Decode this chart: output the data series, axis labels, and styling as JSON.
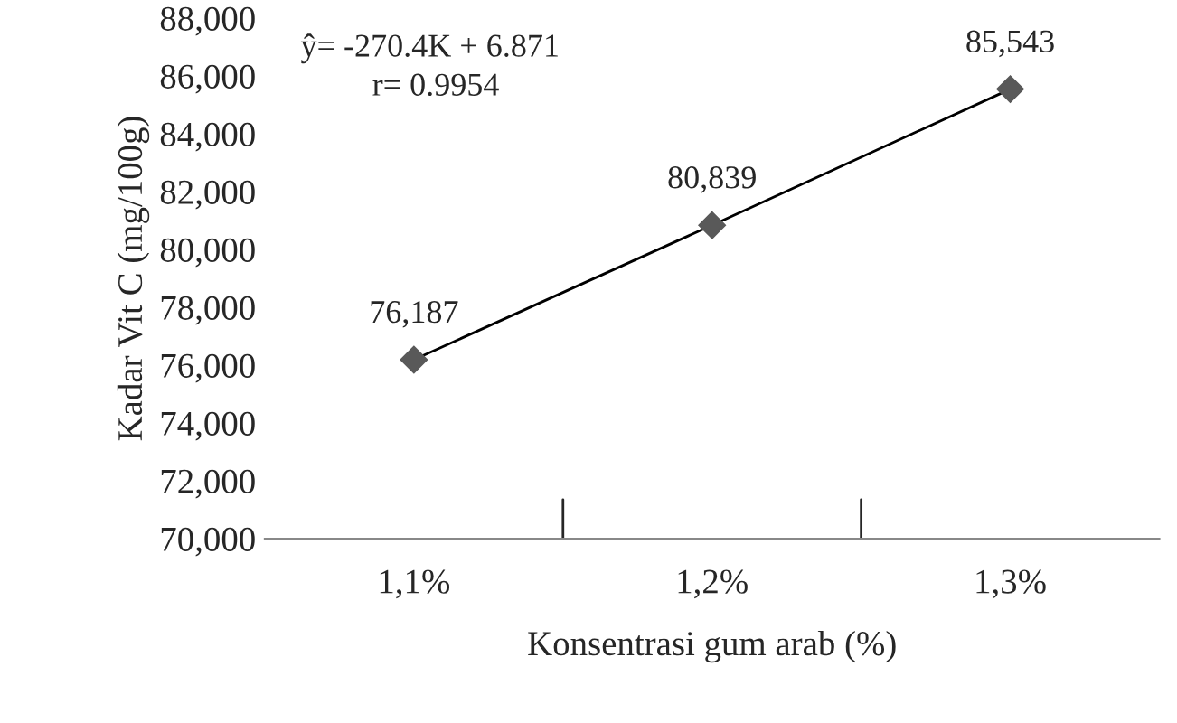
{
  "chart_data": {
    "type": "line",
    "xlabel": "Konsentrasi gum arab (%)",
    "ylabel": "Kadar Vit C (mg/100g)",
    "categories": [
      "1,1%",
      "1,2%",
      "1,3%"
    ],
    "series": [
      {
        "color": "#595959",
        "values": [
          76187,
          80839,
          85543
        ],
        "value_labels": [
          "76,187",
          "80,839",
          "85,543"
        ]
      }
    ],
    "ylim": [
      70000,
      88000
    ],
    "yticks": [
      {
        "value": 70000,
        "label": "70,000"
      },
      {
        "value": 72000,
        "label": "72,000"
      },
      {
        "value": 74000,
        "label": "74,000"
      },
      {
        "value": 76000,
        "label": "76,000"
      },
      {
        "value": 78000,
        "label": "78,000"
      },
      {
        "value": 80000,
        "label": "80,000"
      },
      {
        "value": 82000,
        "label": "82,000"
      },
      {
        "value": 84000,
        "label": "84,000"
      },
      {
        "value": 86000,
        "label": "86,000"
      },
      {
        "value": 88000,
        "label": "88,000"
      }
    ],
    "marker": "diamond",
    "line_style": "solid",
    "grid": false,
    "annotations": [
      "ŷ= -270.4K + 6.871",
      "r= 0.9954"
    ]
  }
}
